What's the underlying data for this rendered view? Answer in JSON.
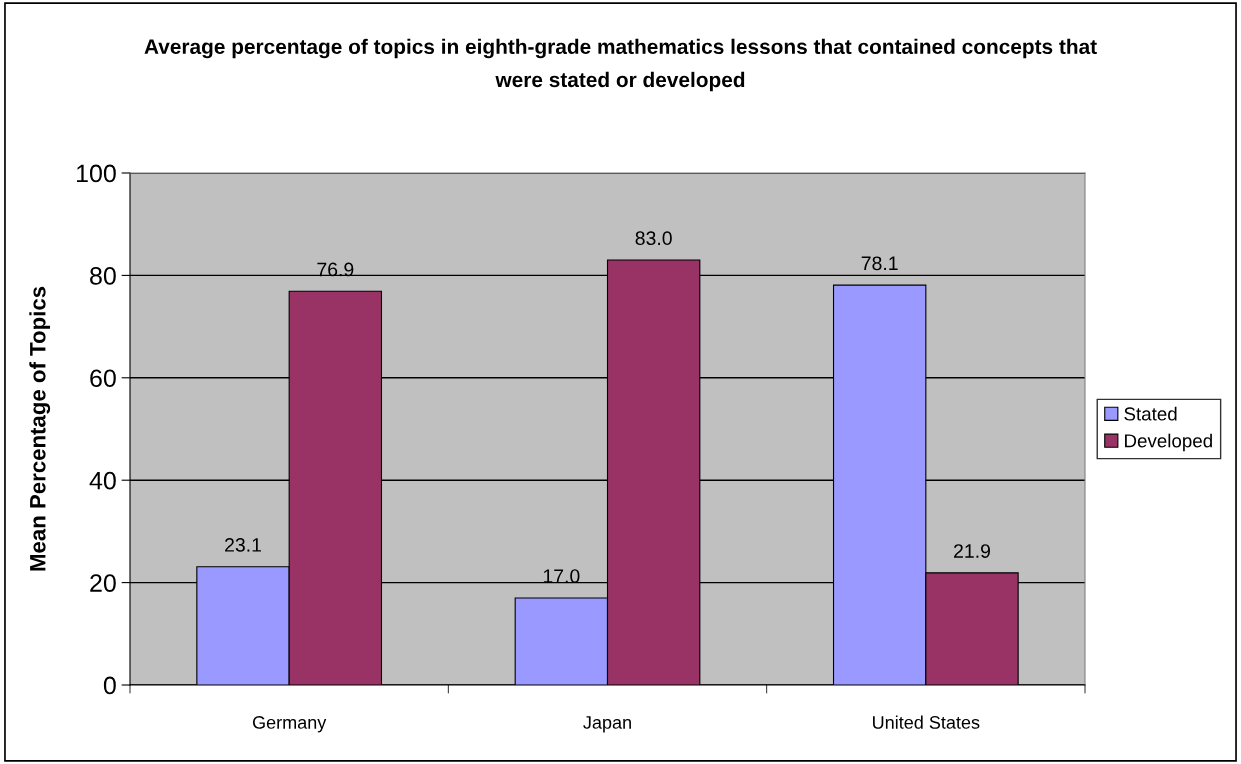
{
  "chart_data": {
    "type": "bar",
    "title": "Average percentage of topics in eighth-grade mathematics lessons that contained concepts that\nwere stated or developed",
    "ylabel": "Mean Percentage of Topics",
    "categories": [
      "Germany",
      "Japan",
      "United States"
    ],
    "series": [
      {
        "name": "Stated",
        "color": "#9999ff",
        "values": [
          23.1,
          17.0,
          78.1
        ],
        "value_labels": [
          "23.1",
          "17.0",
          "78.1"
        ]
      },
      {
        "name": "Developed",
        "color": "#993366",
        "values": [
          76.9,
          83.0,
          21.9
        ],
        "value_labels": [
          "76.9",
          "83.0",
          "21.9"
        ]
      }
    ],
    "ylim": [
      0,
      100
    ],
    "yticks": [
      0,
      20,
      40,
      60,
      80,
      100
    ],
    "grid": "y",
    "legend": "right"
  }
}
